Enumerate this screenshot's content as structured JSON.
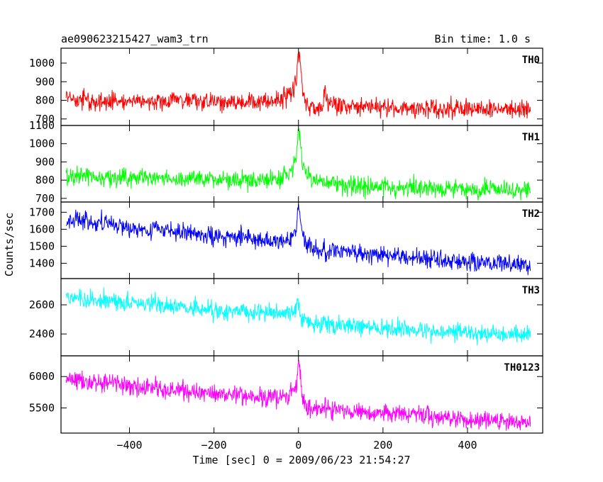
{
  "chart_data": {
    "type": "line",
    "title": "ae090623215427_wam3_trn",
    "subtitle": "Bin time: 1.0 s",
    "xlabel": "Time [sec] 0 = 2009/06/23 21:54:27",
    "ylabel": "Counts/sec",
    "xlim": [
      -562,
      578
    ],
    "x_ticks": [
      -400,
      -200,
      0,
      200,
      400
    ],
    "x_tick_labels": [
      "−400",
      "−200",
      "0",
      "200",
      "400"
    ],
    "grid": false,
    "panels": [
      {
        "name": "TH0",
        "color": "#ff0000",
        "ylim": [
          665,
          1080
        ],
        "y_ticks": [
          700,
          800,
          900,
          1000
        ],
        "y_tick_labels": [
          "700",
          "800",
          "900",
          "1000"
        ],
        "series": [
          {
            "x": [
              -550,
              -500,
              -400,
              -300,
              -200,
              -100,
              -40,
              -20,
              -5,
              0,
              3,
              10,
              20,
              40,
              58,
              62,
              70,
              100,
              200,
              300,
              400,
              500,
              550
            ],
            "y": [
              815,
              800,
              795,
              800,
              795,
              790,
              805,
              830,
              900,
              1070,
              1030,
              860,
              780,
              750,
              770,
              870,
              780,
              770,
              760,
              755,
              755,
              750,
              750
            ]
          }
        ]
      },
      {
        "name": "TH1",
        "color": "#00ff00",
        "ylim": [
          680,
          1100
        ],
        "y_ticks": [
          700,
          800,
          900,
          1000,
          1100
        ],
        "y_tick_labels": [
          "700",
          "800",
          "900",
          "1000",
          "1100"
        ],
        "series": [
          {
            "x": [
              -550,
              -500,
              -400,
              -300,
              -200,
              -100,
              -40,
              -20,
              -5,
              0,
              3,
              10,
              20,
              40,
              100,
              200,
              300,
              400,
              500,
              550
            ],
            "y": [
              820,
              820,
              815,
              810,
              805,
              800,
              805,
              840,
              920,
              1090,
              1040,
              900,
              830,
              790,
              775,
              760,
              755,
              750,
              745,
              745
            ]
          }
        ]
      },
      {
        "name": "TH2",
        "color": "#0000ff",
        "ylim": [
          1310,
          1760
        ],
        "y_ticks": [
          1400,
          1500,
          1600,
          1700
        ],
        "y_tick_labels": [
          "1400",
          "1500",
          "1600",
          "1700"
        ],
        "series": [
          {
            "x": [
              -550,
              -500,
              -400,
              -300,
              -200,
              -100,
              -40,
              -20,
              -5,
              0,
              3,
              10,
              20,
              40,
              100,
              200,
              300,
              400,
              500,
              550
            ],
            "y": [
              1650,
              1640,
              1610,
              1590,
              1565,
              1540,
              1530,
              1550,
              1600,
              1750,
              1680,
              1540,
              1490,
              1480,
              1470,
              1450,
              1430,
              1410,
              1395,
              1390
            ]
          }
        ]
      },
      {
        "name": "TH3",
        "color": "#00ffff",
        "ylim": [
          2250,
          2780
        ],
        "y_ticks": [
          2400,
          2600
        ],
        "y_tick_labels": [
          "2400",
          "2600"
        ],
        "series": [
          {
            "x": [
              -550,
              -500,
              -400,
              -300,
              -200,
              -100,
              -40,
              -20,
              -5,
              0,
              3,
              10,
              20,
              40,
              100,
              200,
              300,
              400,
              500,
              550
            ],
            "y": [
              2650,
              2640,
              2615,
              2590,
              2565,
              2540,
              2535,
              2550,
              2580,
              2620,
              2560,
              2500,
              2480,
              2470,
              2460,
              2440,
              2425,
              2410,
              2400,
              2395
            ]
          }
        ]
      },
      {
        "name": "TH0123",
        "color": "#ff00ff",
        "ylim": [
          5100,
          6330
        ],
        "y_ticks": [
          5500,
          6000
        ],
        "y_tick_labels": [
          "5500",
          "6000"
        ],
        "series": [
          {
            "x": [
              -550,
              -500,
              -400,
              -300,
              -200,
              -100,
              -40,
              -20,
              -5,
              0,
              3,
              10,
              20,
              40,
              58,
              62,
              70,
              100,
              200,
              300,
              400,
              500,
              550
            ],
            "y": [
              5950,
              5920,
              5850,
              5790,
              5730,
              5670,
              5650,
              5720,
              5850,
              6300,
              6100,
              5620,
              5520,
              5480,
              5490,
              5560,
              5470,
              5460,
              5420,
              5370,
              5320,
              5280,
              5270
            ]
          }
        ]
      }
    ]
  }
}
